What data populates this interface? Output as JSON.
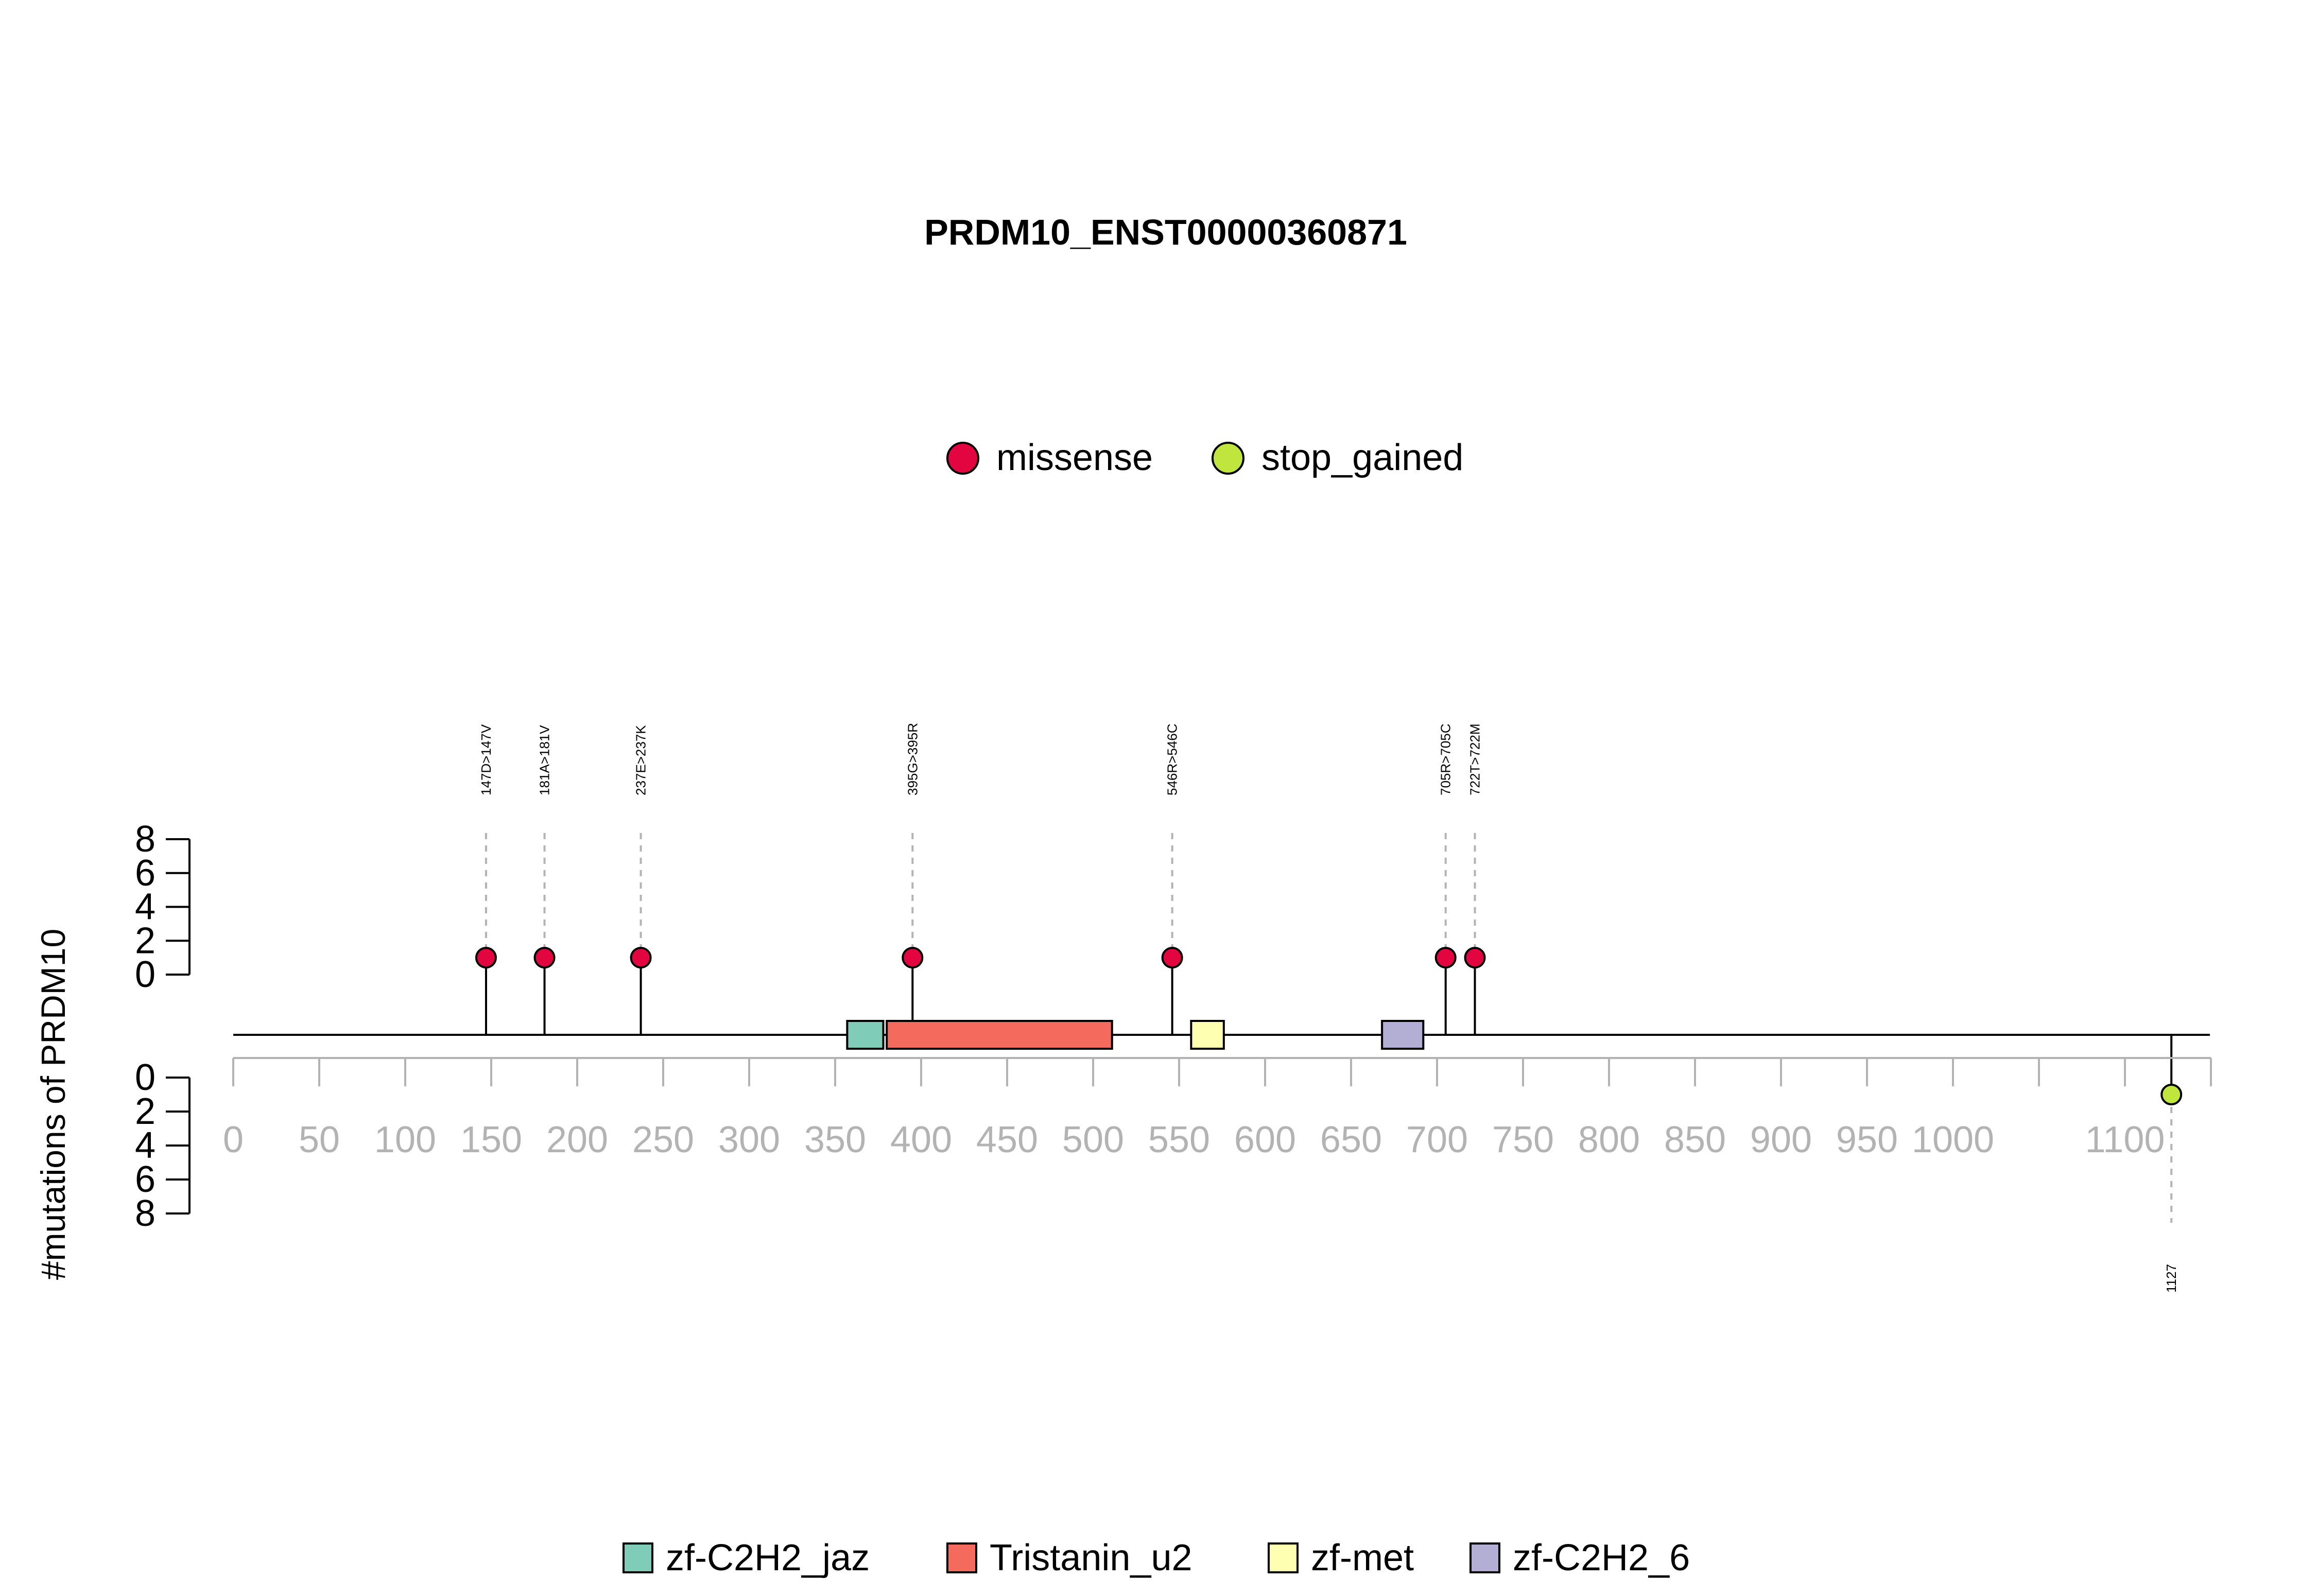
{
  "chart_data": {
    "type": "lollipop",
    "title": "PRDM10_ENST00000360871",
    "ylabel": "#mutations of PRDM10",
    "xlim": [
      0,
      1150
    ],
    "x_ticks": [
      0,
      50,
      100,
      150,
      200,
      250,
      300,
      350,
      400,
      450,
      500,
      550,
      600,
      650,
      700,
      750,
      800,
      850,
      900,
      950,
      1000,
      1050,
      1100,
      1150
    ],
    "x_tick_labels": [
      "0",
      "50",
      "100",
      "150",
      "200",
      "250",
      "300",
      "350",
      "400",
      "450",
      "500",
      "550",
      "600",
      "650",
      "700",
      "750",
      "800",
      "850",
      "900",
      "950",
      "1000",
      "",
      "1100",
      ""
    ],
    "y_ticks": [
      "0",
      "2",
      "4",
      "6",
      "8"
    ],
    "ylim": [
      0,
      8
    ],
    "legend_mutation_types": [
      {
        "name": "missense",
        "color": "#e3053f"
      },
      {
        "name": "stop_gained",
        "color": "#c0e53c"
      }
    ],
    "mutations": [
      {
        "position": 147,
        "label": "147D>147V",
        "type": "missense",
        "count": 1,
        "side": "top"
      },
      {
        "position": 181,
        "label": "181A>181V",
        "type": "missense",
        "count": 1,
        "side": "top"
      },
      {
        "position": 237,
        "label": "237E>237K",
        "type": "missense",
        "count": 1,
        "side": "top"
      },
      {
        "position": 395,
        "label": "395G>395R",
        "type": "missense",
        "count": 1,
        "side": "top"
      },
      {
        "position": 546,
        "label": "546R>546C",
        "type": "missense",
        "count": 1,
        "side": "top"
      },
      {
        "position": 705,
        "label": "705R>705C",
        "type": "missense",
        "count": 1,
        "side": "top"
      },
      {
        "position": 722,
        "label": "722T>722M",
        "type": "missense",
        "count": 1,
        "side": "top"
      },
      {
        "position": 1127,
        "label": "1127",
        "type": "stop_gained",
        "count": 1,
        "side": "bottom"
      }
    ],
    "domains": [
      {
        "name": "zf-C2H2_jaz",
        "start": 357,
        "end": 378,
        "color": "#7fccb9"
      },
      {
        "name": "Tristanin_u2",
        "start": 380,
        "end": 511,
        "color": "#f46a5d"
      },
      {
        "name": "zf-met",
        "start": 557,
        "end": 576,
        "color": "#ffffb1"
      },
      {
        "name": "zf-C2H2_6",
        "start": 668,
        "end": 692,
        "color": "#b3aed3"
      }
    ]
  }
}
